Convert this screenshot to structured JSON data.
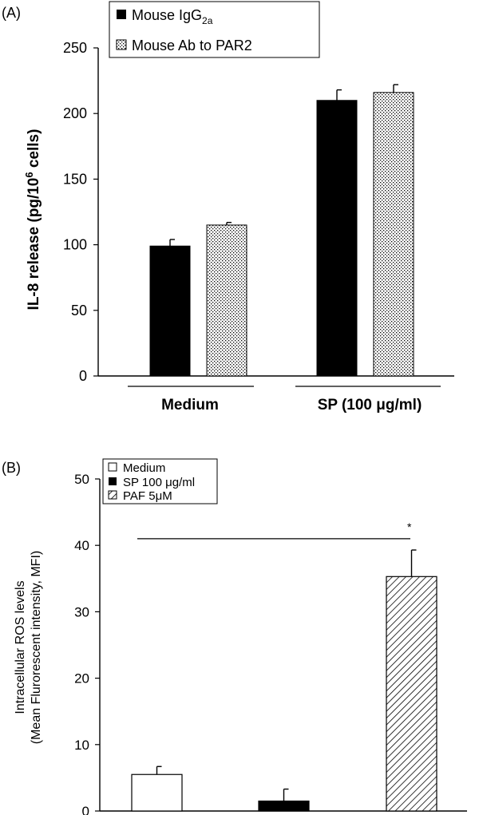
{
  "chart_data": [
    {
      "panel": "(A)",
      "type": "bar",
      "ylabel": "IL-8 release",
      "ylabel_unit_prefix": "(pg/10",
      "ylabel_unit_sup": "6",
      "ylabel_unit_suffix": " cells)",
      "ylim": [
        0,
        250
      ],
      "yticks": [
        0,
        50,
        100,
        150,
        200,
        250
      ],
      "categories": [
        "Medium",
        "SP (100 μg/ml)"
      ],
      "legend_position": "top",
      "series": [
        {
          "name": "Mouse IgG",
          "name_sub": "2a",
          "fill": "solid-black",
          "values": [
            99,
            210
          ],
          "errors": [
            5,
            8
          ]
        },
        {
          "name": "Mouse Ab to PAR2",
          "fill": "dotted",
          "values": [
            115,
            216
          ],
          "errors": [
            2,
            6
          ]
        }
      ],
      "grid": false
    },
    {
      "panel": "(B)",
      "type": "bar",
      "ylabel_line1": "Intracellular ROS levels",
      "ylabel_line2": "(Mean Flurorescent intensity, MFI)",
      "ylim": [
        0,
        50
      ],
      "yticks": [
        0,
        10,
        20,
        30,
        40,
        50
      ],
      "legend_position": "top-left",
      "series": [
        {
          "name": "Medium",
          "fill": "white",
          "value": 5.5,
          "error": 1.2
        },
        {
          "name": "SP 100 μg/ml",
          "fill": "solid-black",
          "value": 1.5,
          "error": 1.8
        },
        {
          "name": "PAF 5μM",
          "fill": "hatched",
          "value": 35.3,
          "error": 4.0
        }
      ],
      "significance": {
        "label": "*",
        "y": 41
      },
      "grid": false
    }
  ],
  "colors": {
    "ink": "#000000",
    "background": "#ffffff"
  }
}
